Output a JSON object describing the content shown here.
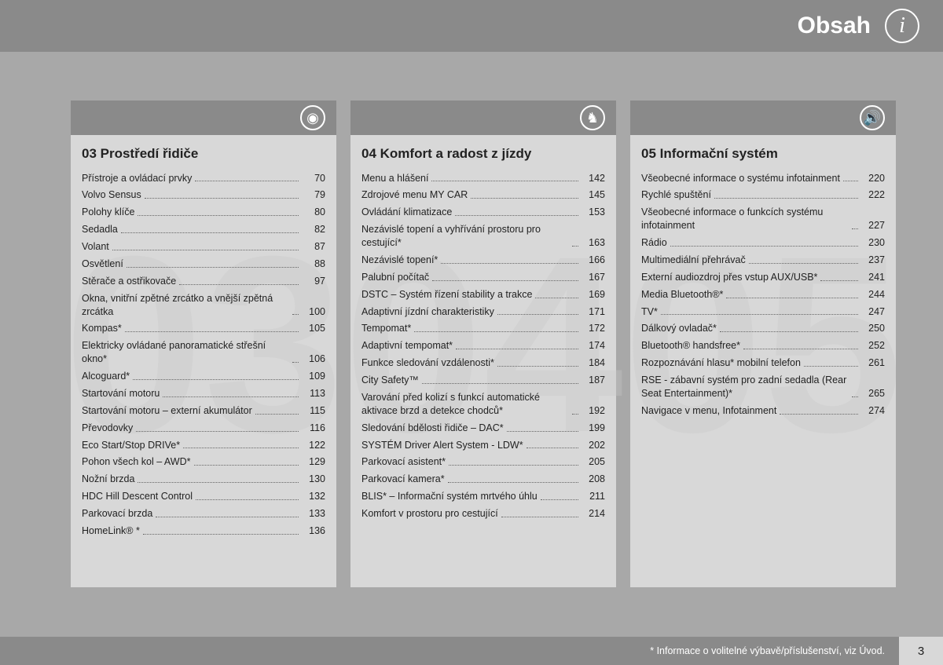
{
  "header": {
    "title": "Obsah",
    "info_glyph": "i"
  },
  "columns": [
    {
      "watermark": "03",
      "icon_glyph": "◉",
      "title": "03 Prostředí řidiče",
      "items": [
        {
          "label": "Přístroje a ovládací prvky",
          "page": "70"
        },
        {
          "label": "Volvo Sensus",
          "page": "79"
        },
        {
          "label": "Polohy klíče",
          "page": "80"
        },
        {
          "label": "Sedadla",
          "page": "82"
        },
        {
          "label": "Volant",
          "page": "87"
        },
        {
          "label": "Osvětlení",
          "page": "88"
        },
        {
          "label": "Stěrače a ostřikovače",
          "page": "97"
        },
        {
          "label": "Okna, vnitřní zpětné zrcátko a vnější zpětná zrcátka",
          "page": "100"
        },
        {
          "label": "Kompas*",
          "page": "105"
        },
        {
          "label": "Elektricky ovládané panoramatické střešní okno*",
          "page": "106"
        },
        {
          "label": "Alcoguard*",
          "page": "109"
        },
        {
          "label": "Startování motoru",
          "page": "113"
        },
        {
          "label": "Startování motoru – externí akumulátor",
          "page": "115"
        },
        {
          "label": "Převodovky",
          "page": "116"
        },
        {
          "label": "Eco Start/Stop DRIVe*",
          "page": "122"
        },
        {
          "label": "Pohon všech kol – AWD*",
          "page": "129"
        },
        {
          "label": "Nožní brzda",
          "page": "130"
        },
        {
          "label": "HDC Hill Descent Control",
          "page": "132"
        },
        {
          "label": "Parkovací brzda",
          "page": "133"
        },
        {
          "label": "HomeLink® *",
          "page": "136"
        }
      ]
    },
    {
      "watermark": "04",
      "icon_glyph": "♞",
      "title": "04 Komfort a radost z jízdy",
      "items": [
        {
          "label": "Menu a hlášení",
          "page": "142"
        },
        {
          "label": "Zdrojové menu MY CAR",
          "page": "145"
        },
        {
          "label": "Ovládání klimatizace",
          "page": "153"
        },
        {
          "label": "Nezávislé topení a vyhřívání prostoru pro cestující*",
          "page": "163"
        },
        {
          "label": "Nezávislé topení*",
          "page": "166"
        },
        {
          "label": "Palubní počítač",
          "page": "167"
        },
        {
          "label": "DSTC – Systém řízení stability a trakce",
          "page": "169"
        },
        {
          "label": "Adaptivní jízdní charakteristiky",
          "page": "171"
        },
        {
          "label": "Tempomat*",
          "page": "172"
        },
        {
          "label": "Adaptivní tempomat*",
          "page": "174"
        },
        {
          "label": "Funkce sledování vzdálenosti*",
          "page": "184"
        },
        {
          "label": "City Safety™",
          "page": "187"
        },
        {
          "label": "Varování před kolizí s funkcí automatické aktivace brzd a detekce chodců*",
          "page": "192"
        },
        {
          "label": "Sledování bdělosti řidiče – DAC*",
          "page": "199"
        },
        {
          "label": "SYSTÉM Driver Alert System - LDW*",
          "page": "202"
        },
        {
          "label": "Parkovací asistent*",
          "page": "205"
        },
        {
          "label": "Parkovací kamera*",
          "page": "208"
        },
        {
          "label": "BLIS* – Informační systém mrtvého úhlu",
          "page": "211"
        },
        {
          "label": "Komfort v prostoru pro cestující",
          "page": "214"
        }
      ]
    },
    {
      "watermark": "05",
      "icon_glyph": "🔊",
      "title": "05 Informační systém",
      "items": [
        {
          "label": "Všeobecné informace o systému infotainment",
          "page": "220"
        },
        {
          "label": "Rychlé spuštění",
          "page": "222"
        },
        {
          "label": "Všeobecné informace o funkcích systému infotainment",
          "page": "227"
        },
        {
          "label": "Rádio",
          "page": "230"
        },
        {
          "label": "Multimediální přehrávač",
          "page": "237"
        },
        {
          "label": "Externí audiozdroj přes vstup AUX/USB*",
          "page": "241"
        },
        {
          "label": "Media Bluetooth®*",
          "page": "244"
        },
        {
          "label": "TV*",
          "page": "247"
        },
        {
          "label": "Dálkový ovladač*",
          "page": "250"
        },
        {
          "label": "Bluetooth® handsfree*",
          "page": "252"
        },
        {
          "label": "Rozpoznávání hlasu* mobilní telefon",
          "page": "261"
        },
        {
          "label": "RSE - zábavní systém pro zadní sedadla (Rear Seat Entertainment)*",
          "page": "265"
        },
        {
          "label": "Navigace v menu, Infotainment",
          "page": "274"
        }
      ]
    }
  ],
  "footer": {
    "note": "* Informace o volitelné výbavě/příslušenství, viz Úvod.",
    "page": "3"
  }
}
